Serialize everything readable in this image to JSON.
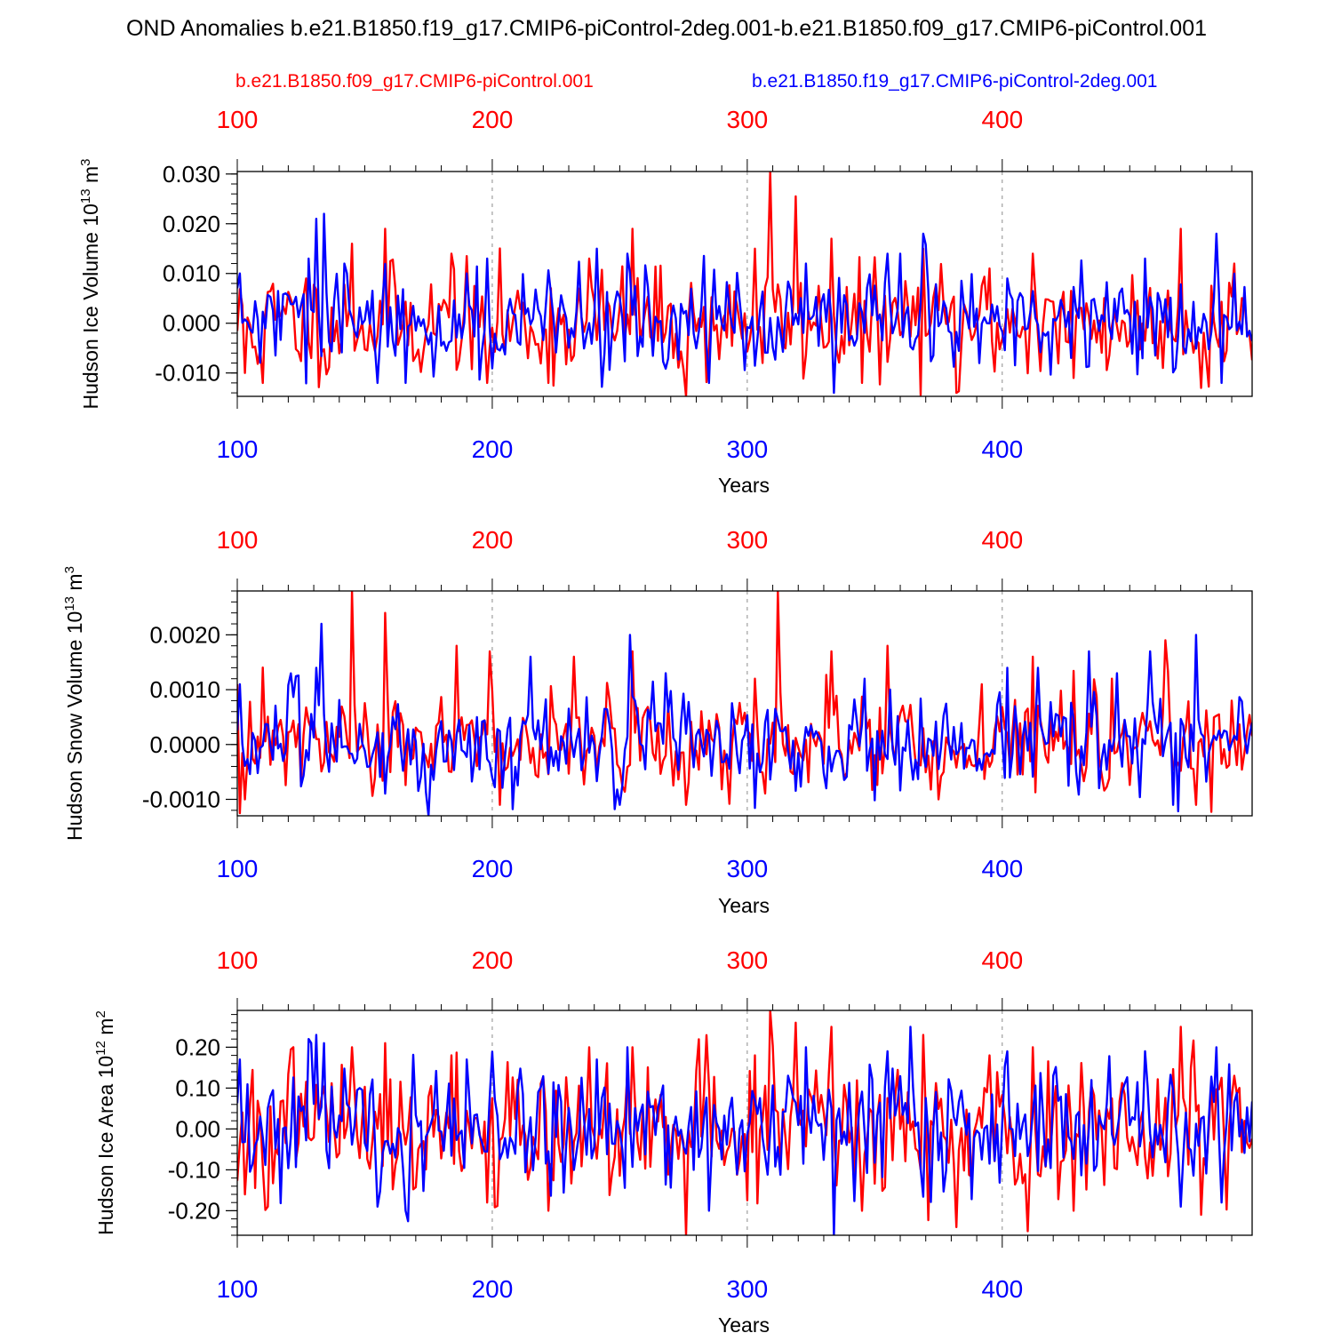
{
  "title": "OND Anomalies b.e21.B1850.f19_g17.CMIP6-piControl-2deg.001-b.e21.B1850.f09_g17.CMIP6-piControl.001",
  "legend": {
    "red": "b.e21.B1850.f09_g17.CMIP6-piControl.001",
    "blue": "b.e21.B1850.f19_g17.CMIP6-piControl-2deg.001"
  },
  "colors": {
    "red": "#ff0000",
    "blue": "#0000ff",
    "axis": "#000000",
    "grid": "#8c8c8c"
  },
  "chart_data": [
    {
      "type": "line",
      "ylabel": "Hudson Ice Volume 10",
      "ylabel_exp": "13",
      "ylabel_unit": " m",
      "ylabel_unit_exp": "3",
      "xlabel": "Years",
      "xlim": [
        100,
        498
      ],
      "ylim": [
        -0.0147,
        0.0305
      ],
      "yticks": [
        -0.01,
        0.0,
        0.01,
        0.02,
        0.03
      ],
      "ytick_labels": [
        "-0.010",
        "0.000",
        "0.010",
        "0.020",
        "0.030"
      ],
      "yminor_step": 0.002,
      "top_ticks": [
        100,
        200,
        300,
        400
      ],
      "top_tick_labels": [
        "100",
        "200",
        "300",
        "400"
      ],
      "bottom_ticks": [
        100,
        200,
        300,
        400
      ],
      "bottom_tick_labels": [
        "100",
        "200",
        "300",
        "400"
      ],
      "grid_x": [
        200,
        300,
        400
      ],
      "series": [
        {
          "name": "b.e21.B1850.f09_g17.CMIP6-piControl.001",
          "color": "red",
          "seed": 11,
          "scale": 0.0055,
          "spikes": [
            [
              103,
              -0.01
            ],
            [
              110,
              -0.012
            ],
            [
              127,
              0.009
            ],
            [
              145,
              0.016
            ],
            [
              158,
              0.019
            ],
            [
              184,
              0.014
            ],
            [
              198,
              -0.012
            ],
            [
              222,
              -0.012
            ],
            [
              238,
              0.013
            ],
            [
              255,
              0.019
            ],
            [
              276,
              -0.0147
            ],
            [
              303,
              0.015
            ],
            [
              309,
              0.0305
            ],
            [
              319,
              0.0255
            ],
            [
              333,
              0.017
            ],
            [
              345,
              -0.012
            ],
            [
              369,
              0.015
            ],
            [
              382,
              -0.014
            ],
            [
              395,
              0.011
            ],
            [
              412,
              0.014
            ],
            [
              428,
              -0.011
            ],
            [
              470,
              0.019
            ],
            [
              478,
              -0.013
            ],
            [
              491,
              0.012
            ]
          ]
        },
        {
          "name": "b.e21.B1850.f19_g17.CMIP6-piControl-2deg.001",
          "color": "blue",
          "seed": 29,
          "scale": 0.005,
          "spikes": [
            [
              101,
              0.01
            ],
            [
              128,
              0.013
            ],
            [
              131,
              0.021
            ],
            [
              134,
              0.022
            ],
            [
              142,
              0.012
            ],
            [
              155,
              -0.012
            ],
            [
              166,
              -0.012
            ],
            [
              190,
              0.01
            ],
            [
              241,
              0.015
            ],
            [
              253,
              0.014
            ],
            [
              285,
              -0.012
            ],
            [
              323,
              0.012
            ],
            [
              334,
              -0.014
            ],
            [
              355,
              0.014
            ],
            [
              360,
              0.014
            ],
            [
              369,
              0.018
            ],
            [
              402,
              0.009
            ],
            [
              456,
              0.013
            ],
            [
              484,
              0.018
            ],
            [
              486,
              -0.012
            ]
          ]
        }
      ]
    },
    {
      "type": "line",
      "ylabel": "Hudson Snow Volume 10",
      "ylabel_exp": "13",
      "ylabel_unit": " m",
      "ylabel_unit_exp": "3",
      "xlabel": "Years",
      "xlim": [
        100,
        498
      ],
      "ylim": [
        -0.0013,
        0.0028
      ],
      "yticks": [
        -0.001,
        0.0,
        0.001,
        0.002
      ],
      "ytick_labels": [
        "-0.0010",
        "0.0000",
        "0.0010",
        "0.0020"
      ],
      "yminor_step": 0.0002,
      "top_ticks": [
        100,
        200,
        300,
        400
      ],
      "top_tick_labels": [
        "100",
        "200",
        "300",
        "400"
      ],
      "bottom_ticks": [
        100,
        200,
        300,
        400
      ],
      "bottom_tick_labels": [
        "100",
        "200",
        "300",
        "400"
      ],
      "grid_x": [
        200,
        300,
        400
      ],
      "series": [
        {
          "name": "b.e21.B1850.f09_g17.CMIP6-piControl.001",
          "color": "red",
          "seed": 47,
          "scale": 0.00045,
          "spikes": [
            [
              100,
              0.0011
            ],
            [
              103,
              -0.001
            ],
            [
              145,
              0.0028
            ],
            [
              158,
              0.0024
            ],
            [
              186,
              0.0018
            ],
            [
              199,
              0.0017
            ],
            [
              203,
              -0.0011
            ],
            [
              232,
              0.0016
            ],
            [
              255,
              0.0017
            ],
            [
              276,
              -0.0011
            ],
            [
              303,
              0.0012
            ],
            [
              312,
              0.0028
            ],
            [
              333,
              0.0017
            ],
            [
              355,
              0.0018
            ],
            [
              375,
              -0.001
            ],
            [
              392,
              0.0011
            ],
            [
              412,
              0.0016
            ],
            [
              443,
              0.0012
            ],
            [
              464,
              0.0019
            ],
            [
              476,
              -0.0011
            ],
            [
              490,
              0.0008
            ]
          ]
        },
        {
          "name": "b.e21.B1850.f19_g17.CMIP6-piControl-2deg.001",
          "color": "blue",
          "seed": 83,
          "scale": 0.00045,
          "spikes": [
            [
              101,
              0.0011
            ],
            [
              131,
              0.0014
            ],
            [
              133,
              0.0022
            ],
            [
              175,
              -0.0013
            ],
            [
              215,
              0.0016
            ],
            [
              250,
              -0.0011
            ],
            [
              254,
              0.002
            ],
            [
              268,
              0.0013
            ],
            [
              346,
              0.0012
            ],
            [
              402,
              0.0014
            ],
            [
              414,
              0.0014
            ],
            [
              434,
              0.0017
            ],
            [
              445,
              0.0013
            ],
            [
              458,
              0.0017
            ],
            [
              476,
              0.002
            ],
            [
              467,
              -0.0011
            ]
          ]
        }
      ]
    },
    {
      "type": "line",
      "ylabel": "Hudson Ice Area 10",
      "ylabel_exp": "12",
      "ylabel_unit": " m",
      "ylabel_unit_exp": "2",
      "xlabel": "Years",
      "xlim": [
        100,
        498
      ],
      "ylim": [
        -0.26,
        0.29
      ],
      "yticks": [
        -0.2,
        -0.1,
        0.0,
        0.1,
        0.2
      ],
      "ytick_labels": [
        "-0.20",
        "-0.10",
        "0.00",
        "0.10",
        "0.20"
      ],
      "yminor_step": 0.02,
      "top_ticks": [
        100,
        200,
        300,
        400
      ],
      "top_tick_labels": [
        "100",
        "200",
        "300",
        "400"
      ],
      "bottom_ticks": [
        100,
        200,
        300,
        400
      ],
      "bottom_tick_labels": [
        "100",
        "200",
        "300",
        "400"
      ],
      "grid_x": [
        200,
        300,
        400
      ],
      "series": [
        {
          "name": "b.e21.B1850.f09_g17.CMIP6-piControl.001",
          "color": "red",
          "seed": 101,
          "scale": 0.085,
          "spikes": [
            [
              103,
              -0.16
            ],
            [
              112,
              -0.19
            ],
            [
              145,
              0.2
            ],
            [
              158,
              0.21
            ],
            [
              184,
              0.18
            ],
            [
              198,
              -0.18
            ],
            [
              222,
              -0.2
            ],
            [
              238,
              0.2
            ],
            [
              255,
              0.2
            ],
            [
              276,
              -0.26
            ],
            [
              303,
              0.18
            ],
            [
              309,
              0.29
            ],
            [
              319,
              0.26
            ],
            [
              333,
              0.25
            ],
            [
              345,
              -0.2
            ],
            [
              369,
              0.23
            ],
            [
              382,
              -0.24
            ],
            [
              395,
              0.18
            ],
            [
              412,
              0.2
            ],
            [
              428,
              -0.2
            ],
            [
              470,
              0.25
            ],
            [
              478,
              -0.21
            ],
            [
              491,
              0.13
            ]
          ]
        },
        {
          "name": "b.e21.B1850.f19_g17.CMIP6-piControl-2deg.001",
          "color": "blue",
          "seed": 131,
          "scale": 0.075,
          "spikes": [
            [
              101,
              0.17
            ],
            [
              128,
              0.22
            ],
            [
              131,
              0.23
            ],
            [
              134,
              0.21
            ],
            [
              155,
              -0.19
            ],
            [
              166,
              -0.2
            ],
            [
              190,
              0.17
            ],
            [
              241,
              0.17
            ],
            [
              253,
              0.2
            ],
            [
              285,
              -0.2
            ],
            [
              323,
              0.2
            ],
            [
              334,
              -0.26
            ],
            [
              355,
              0.19
            ],
            [
              364,
              0.25
            ],
            [
              402,
              0.19
            ],
            [
              456,
              0.19
            ],
            [
              484,
              0.2
            ],
            [
              486,
              -0.18
            ]
          ]
        }
      ]
    }
  ]
}
